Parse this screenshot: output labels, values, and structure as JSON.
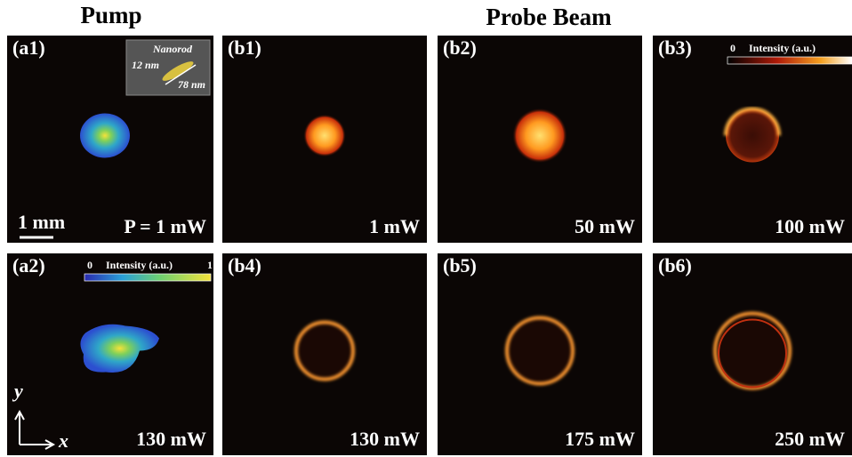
{
  "headers": {
    "pump": "Pump",
    "probe": "Probe Beam"
  },
  "panels": [
    {
      "label": "(a1)",
      "power": "P = 1 mW"
    },
    {
      "label": "(b1)",
      "power": "1 mW"
    },
    {
      "label": "(b2)",
      "power": "50 mW"
    },
    {
      "label": "(b3)",
      "power": "100 mW"
    },
    {
      "label": "(a2)",
      "power": "130 mW"
    },
    {
      "label": "(b4)",
      "power": "130 mW"
    },
    {
      "label": "(b5)",
      "power": "175 mW"
    },
    {
      "label": "(b6)",
      "power": "250 mW"
    }
  ],
  "inset": {
    "title": "Nanorod",
    "width": "12 nm",
    "length": "78 nm"
  },
  "colorbars": [
    {
      "min": "0",
      "label": "Intensity (a.u.)",
      "max": "1"
    },
    {
      "min": "0",
      "label": "Intensity (a.u.)"
    }
  ],
  "scale_bar": "1 mm",
  "axes": {
    "y": "y",
    "x": "x"
  }
}
